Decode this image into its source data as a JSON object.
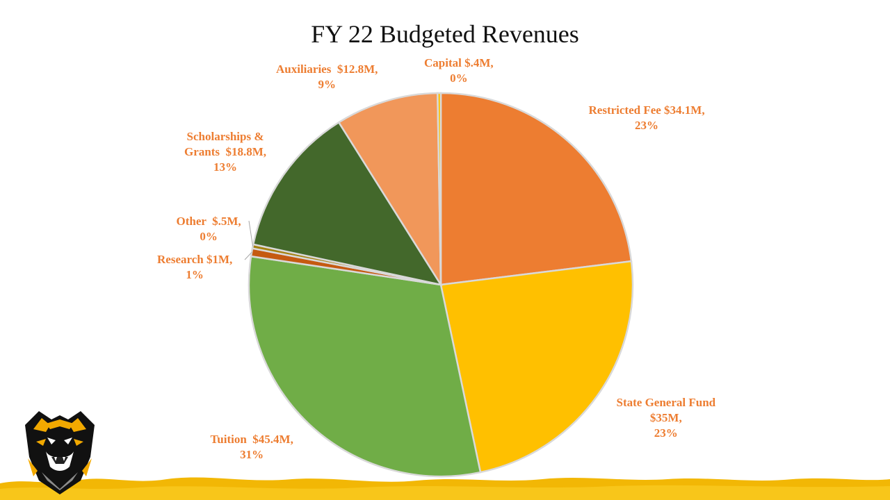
{
  "chart_data": {
    "type": "pie",
    "title": "FY 22 Budgeted Revenues",
    "slices": [
      {
        "name": "Restricted Fee",
        "value": 34.1,
        "percent": 23,
        "label_lines": [
          "Restricted Fee $34.1M,",
          "23%"
        ],
        "color": "#ED7D31"
      },
      {
        "name": "State General Fund",
        "value": 35,
        "percent": 23,
        "label_lines": [
          "State General Fund",
          "$35M,",
          "23%"
        ],
        "color": "#FFC000"
      },
      {
        "name": "Tuition",
        "value": 45.4,
        "percent": 31,
        "label_lines": [
          "Tuition  $45.4M,",
          "31%"
        ],
        "color": "#70AD47"
      },
      {
        "name": "Research",
        "value": 1,
        "percent": 1,
        "label_lines": [
          "Research $1M,",
          "1%"
        ],
        "color": "#C55A11"
      },
      {
        "name": "Other",
        "value": 0.5,
        "percent": 0,
        "label_lines": [
          "Other  $.5M,",
          "0%"
        ],
        "color": "#A5820F"
      },
      {
        "name": "Scholarships & Grants",
        "value": 18.8,
        "percent": 13,
        "label_lines": [
          "Scholarships &",
          "Grants  $18.8M,",
          "13%"
        ],
        "color": "#43682B"
      },
      {
        "name": "Auxiliaries",
        "value": 12.8,
        "percent": 9,
        "label_lines": [
          "Auxiliaries  $12.8M,",
          "9%"
        ],
        "color": "#F1975A"
      },
      {
        "name": "Capital",
        "value": 0.4,
        "percent": 0,
        "label_lines": [
          "Capital $.4M,",
          "0%"
        ],
        "color": "#FFC000"
      }
    ],
    "start_angle_deg": 0,
    "direction": "clockwise",
    "legend": "none",
    "label_color": "#ED7D31"
  }
}
